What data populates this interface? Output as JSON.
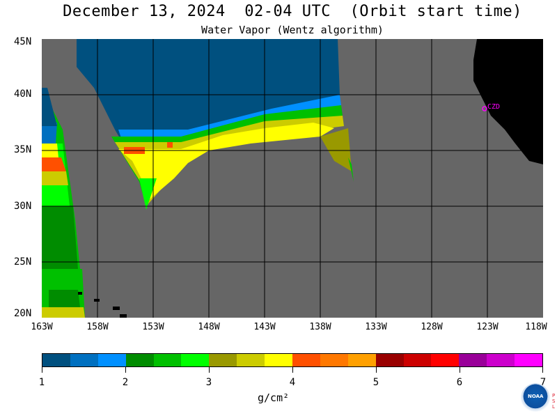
{
  "header": {
    "title": "December 13, 2024  02-04 UTC  (Orbit start time)",
    "subtitle": "Water Vapor (Wentz algorithm)"
  },
  "map": {
    "latitude_labels": [
      "45N",
      "40N",
      "35N",
      "30N",
      "25N",
      "20N"
    ],
    "longitude_labels": [
      "163W",
      "158W",
      "153W",
      "148W",
      "143W",
      "138W",
      "133W",
      "128W",
      "123W",
      "118W"
    ],
    "extent": {
      "lon_min": -163,
      "lon_max": -118,
      "lat_min": 20,
      "lat_max": 45
    },
    "station_label": "CZD",
    "colors": {
      "ocean_no_data": "#666666",
      "land": "#000000",
      "grid": "#000000",
      "station": "#ff00ff"
    }
  },
  "colorbar": {
    "tick_labels": [
      "1",
      "2",
      "3",
      "4",
      "5",
      "6",
      "7"
    ],
    "units": "g/cm²",
    "colors": [
      "#00507f",
      "#0070c0",
      "#0090ff",
      "#008c00",
      "#00c000",
      "#00ff00",
      "#999900",
      "#cccc00",
      "#ffff00",
      "#ff5000",
      "#ff7800",
      "#ffa000",
      "#990000",
      "#cc0000",
      "#ff0000",
      "#990099",
      "#cc00cc",
      "#ff00ff"
    ]
  },
  "logo": {
    "text": "NOAA",
    "side_text": "PSL"
  }
}
